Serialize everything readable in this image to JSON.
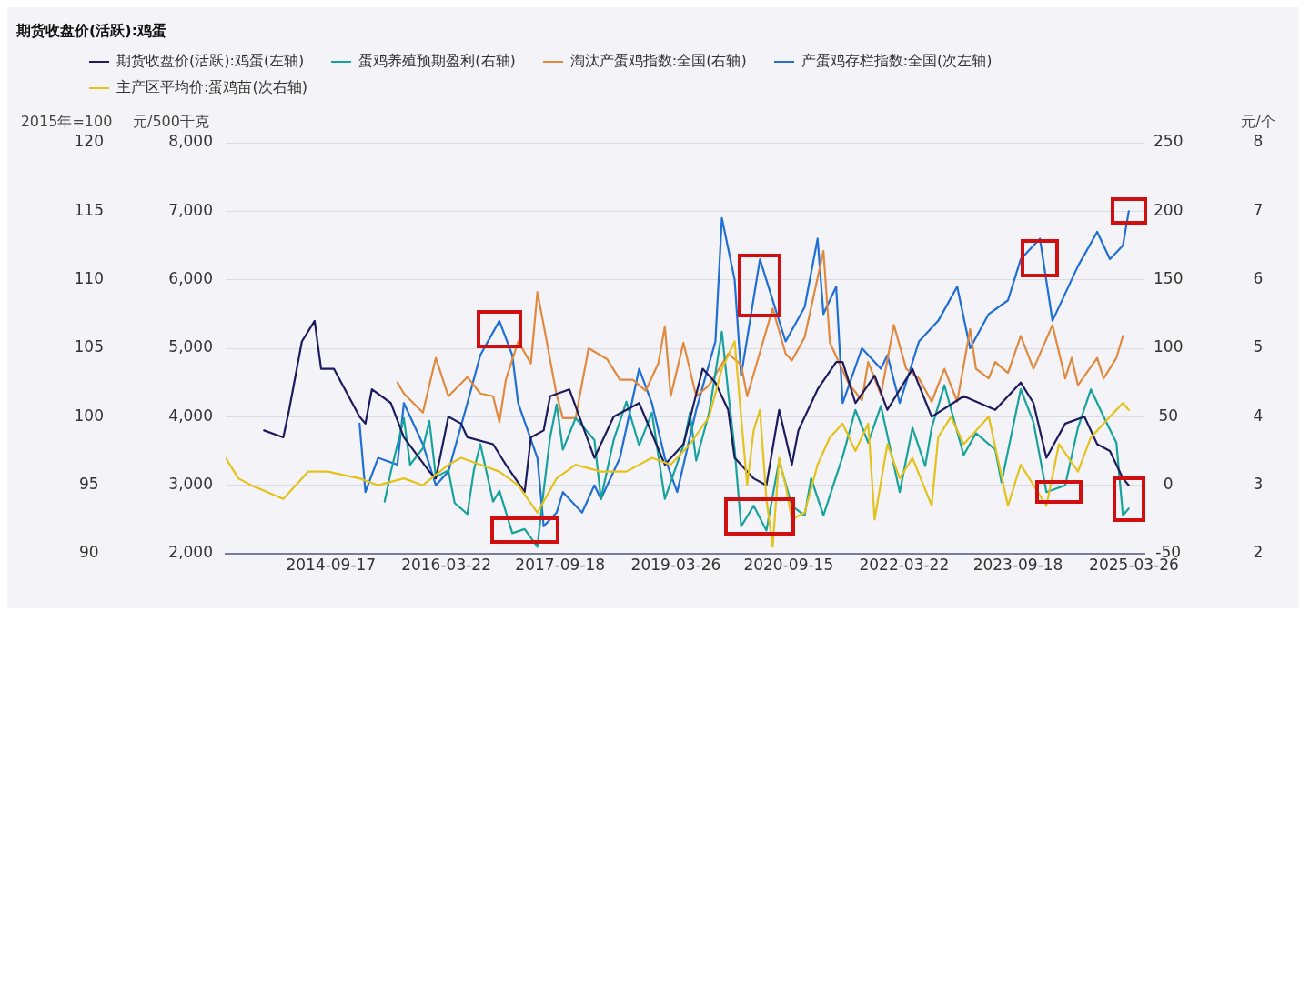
{
  "chart_data": [
    {
      "type": "line",
      "title": "期货收盘价(活跃):鸡蛋",
      "ylabel": "元/500千克",
      "y3label": "2015年=100",
      "legend": "top left",
      "grid": "y",
      "marker": "none",
      "line_style": "solid",
      "xlim": [
        "2013-05-01",
        "2025-05-15"
      ],
      "xticks": [
        "2014-09-17",
        "2016-03-22",
        "2017-09-18",
        "2019-03-26",
        "2020-09-15",
        "2022-03-22",
        "2023-09-18",
        "2025-03-26"
      ],
      "ylim": [
        2000,
        8000
      ],
      "yticks": [
        {
          "value": 2000,
          "label": "2,000"
        },
        {
          "value": 3000,
          "label": "3,000"
        },
        {
          "value": 4000,
          "label": "4,000"
        },
        {
          "value": 5000,
          "label": "5,000"
        },
        {
          "value": 6000,
          "label": "6,000"
        },
        {
          "value": 7000,
          "label": "7,000"
        },
        {
          "value": 8000,
          "label": "8,000"
        }
      ],
      "y2lim": [
        -50,
        250
      ],
      "y2ticks": [
        -50,
        0,
        50,
        100,
        150,
        200,
        250
      ],
      "y3lim": [
        90,
        120
      ],
      "y3ticks": [
        90,
        95,
        100,
        105,
        110,
        115,
        120
      ],
      "series": [
        {
          "name": "期货收盘价(活跃):鸡蛋(左轴)",
          "color": "#1c1c5e",
          "axis": "y",
          "x": [
            "2013-11",
            "2014-02",
            "2014-03",
            "2014-05",
            "2014-07",
            "2014-08",
            "2014-10",
            "2015-02",
            "2015-03",
            "2015-04",
            "2015-07",
            "2015-09",
            "2016-01",
            "2016-02",
            "2016-04",
            "2016-06",
            "2016-07",
            "2016-11",
            "2017-01",
            "2017-04",
            "2017-05",
            "2017-07",
            "2017-08",
            "2017-11",
            "2018-03",
            "2018-06",
            "2018-08",
            "2018-10",
            "2019-02",
            "2019-05",
            "2019-08",
            "2019-10",
            "2019-12",
            "2020-01",
            "2020-04",
            "2020-06",
            "2020-08",
            "2020-10",
            "2020-11",
            "2021-02",
            "2021-05",
            "2021-06",
            "2021-08",
            "2021-11",
            "2022-01",
            "2022-05",
            "2022-08",
            "2023-01",
            "2023-06",
            "2023-10",
            "2023-12",
            "2024-02",
            "2024-05",
            "2024-08",
            "2024-10",
            "2024-12",
            "2025-02",
            "2025-03"
          ],
          "values": [
            3800,
            3700,
            4100,
            5100,
            5400,
            4700,
            4700,
            4000,
            3900,
            4400,
            4200,
            3700,
            3200,
            3100,
            4000,
            3900,
            3700,
            3600,
            3300,
            2900,
            3700,
            3800,
            4300,
            4400,
            3400,
            4000,
            4100,
            4200,
            3300,
            3600,
            4700,
            4500,
            4100,
            3400,
            3100,
            3000,
            4100,
            3300,
            3800,
            4400,
            4800,
            4800,
            4200,
            4600,
            4100,
            4700,
            4000,
            4300,
            4100,
            4500,
            4200,
            3400,
            3900,
            4000,
            3600,
            3500,
            3100,
            3000
          ]
        },
        {
          "name": "蛋鸡养殖预期盈利(右轴)",
          "color": "#17a39c",
          "axis": "y2",
          "x": [
            "2015-06",
            "2015-07",
            "2015-09",
            "2015-10",
            "2015-12",
            "2016-01",
            "2016-02",
            "2016-04",
            "2016-05",
            "2016-07",
            "2016-08",
            "2016-09",
            "2016-11",
            "2016-12",
            "2017-02",
            "2017-04",
            "2017-06",
            "2017-07",
            "2017-08",
            "2017-09",
            "2017-10",
            "2017-12",
            "2018-03",
            "2018-04",
            "2018-06",
            "2018-08",
            "2018-10",
            "2018-12",
            "2019-02",
            "2019-05",
            "2019-06",
            "2019-07",
            "2019-09",
            "2019-11",
            "2019-12",
            "2020-01",
            "2020-02",
            "2020-04",
            "2020-06",
            "2020-08",
            "2020-10",
            "2020-12",
            "2021-01",
            "2021-03",
            "2021-06",
            "2021-08",
            "2021-10",
            "2021-12",
            "2022-03",
            "2022-05",
            "2022-07",
            "2022-08",
            "2022-10",
            "2023-01",
            "2023-03",
            "2023-06",
            "2023-07",
            "2023-10",
            "2023-12",
            "2024-02",
            "2024-05",
            "2024-07",
            "2024-09",
            "2024-11",
            "2025-01",
            "2025-02",
            "2025-03"
          ],
          "values": [
            -12,
            10,
            49,
            15,
            27,
            47,
            6,
            11,
            -13,
            -21,
            11,
            30,
            -12,
            -4,
            -35,
            -32,
            -45,
            -4,
            35,
            59,
            26,
            49,
            33,
            -10,
            33,
            61,
            29,
            53,
            -10,
            29,
            53,
            18,
            53,
            112,
            68,
            26,
            -30,
            -15,
            -33,
            18,
            -15,
            -22,
            5,
            -22,
            21,
            55,
            31,
            58,
            -5,
            42,
            14,
            42,
            73,
            22,
            38,
            26,
            2,
            70,
            46,
            -5,
            0,
            42,
            70,
            50,
            31,
            -22,
            -17
          ]
        },
        {
          "name": "淘汰产蛋鸡指数:全国(右轴)",
          "color": "#e08a3f",
          "axis": "y2",
          "x": [
            "2015-08",
            "2015-09",
            "2015-12",
            "2016-02",
            "2016-04",
            "2016-07",
            "2016-09",
            "2016-11",
            "2016-12",
            "2017-01",
            "2017-03",
            "2017-05",
            "2017-06",
            "2017-07",
            "2017-09",
            "2017-10",
            "2017-12",
            "2018-02",
            "2018-05",
            "2018-07",
            "2018-09",
            "2018-11",
            "2019-01",
            "2019-02",
            "2019-03",
            "2019-05",
            "2019-07",
            "2019-09",
            "2019-12",
            "2020-02",
            "2020-03",
            "2020-07",
            "2020-09",
            "2020-10",
            "2020-12",
            "2021-03",
            "2021-04",
            "2021-07",
            "2021-09",
            "2021-10",
            "2021-12",
            "2022-02",
            "2022-04",
            "2022-06",
            "2022-08",
            "2022-10",
            "2022-12",
            "2023-02",
            "2023-03",
            "2023-05",
            "2023-06",
            "2023-08",
            "2023-10",
            "2023-12",
            "2024-03",
            "2024-05",
            "2024-06",
            "2024-07",
            "2024-10",
            "2024-11",
            "2025-01",
            "2025-02"
          ],
          "values": [
            75,
            67,
            53,
            93,
            65,
            79,
            67,
            65,
            46,
            77,
            105,
            89,
            141,
            117,
            66,
            49,
            49,
            100,
            92,
            77,
            77,
            69,
            89,
            116,
            65,
            104,
            65,
            73,
            96,
            88,
            65,
            129,
            96,
            91,
            108,
            171,
            104,
            74,
            62,
            90,
            66,
            117,
            85,
            78,
            61,
            85,
            61,
            114,
            85,
            78,
            90,
            82,
            109,
            85,
            117,
            78,
            93,
            73,
            93,
            78,
            93,
            109
          ]
        },
        {
          "name": "产蛋鸡存栏指数:全国(次左轴)",
          "color": "#1f6fd4",
          "axis": "y3",
          "x": [
            "2015-02",
            "2015-03",
            "2015-05",
            "2015-08",
            "2015-09",
            "2015-12",
            "2016-02",
            "2016-04",
            "2016-07",
            "2016-09",
            "2016-12",
            "2017-02",
            "2017-03",
            "2017-06",
            "2017-07",
            "2017-09",
            "2017-10",
            "2018-01",
            "2018-03",
            "2018-04",
            "2018-07",
            "2018-10",
            "2018-12",
            "2019-02",
            "2019-04",
            "2019-07",
            "2019-10",
            "2019-11",
            "2020-01",
            "2020-02",
            "2020-05",
            "2020-08",
            "2020-09",
            "2020-12",
            "2021-02",
            "2021-03",
            "2021-05",
            "2021-06",
            "2021-09",
            "2021-12",
            "2022-01",
            "2022-03",
            "2022-06",
            "2022-09",
            "2022-12",
            "2023-02",
            "2023-05",
            "2023-08",
            "2023-10",
            "2024-01",
            "2024-03",
            "2024-07",
            "2024-10",
            "2024-12",
            "2025-02",
            "2025-03"
          ],
          "values": [
            99.5,
            94.5,
            97,
            96.5,
            101,
            98,
            95,
            96,
            101,
            104.5,
            107,
            104.5,
            101,
            97,
            92,
            93,
            94.5,
            93,
            95,
            94,
            97,
            103.5,
            101,
            97,
            94.5,
            100.5,
            105.5,
            114.5,
            110,
            103,
            111.5,
            107,
            105.5,
            108,
            113,
            107.5,
            109.5,
            101,
            105,
            103.5,
            104.5,
            101,
            105.5,
            107,
            109.5,
            105,
            107.5,
            108.5,
            111.5,
            113,
            107,
            111,
            113.5,
            111.5,
            112.5,
            115
          ]
        }
      ]
    },
    {
      "type": "line",
      "ylabel": "元/个",
      "legend": "top left",
      "marker": "none",
      "line_style": "solid",
      "tick_labels": "y",
      "xlim": [
        "2013-05-01",
        "2025-05-15"
      ],
      "ylim": [
        2,
        8
      ],
      "yticks": [
        2,
        3,
        4,
        5,
        6,
        7,
        8
      ],
      "series": [
        {
          "name": "主产区平均价:蛋鸡苗(次右轴)",
          "color": "#e3c21c",
          "x": [
            "2013-05",
            "2013-07",
            "2013-09",
            "2014-02",
            "2014-06",
            "2014-09",
            "2015-02",
            "2015-05",
            "2015-09",
            "2015-12",
            "2016-04",
            "2016-06",
            "2016-09",
            "2016-12",
            "2017-03",
            "2017-06",
            "2017-09",
            "2017-12",
            "2018-04",
            "2018-08",
            "2018-12",
            "2019-03",
            "2019-06",
            "2019-09",
            "2019-11",
            "2020-01",
            "2020-02",
            "2020-03",
            "2020-04",
            "2020-05",
            "2020-06",
            "2020-07",
            "2020-08",
            "2020-09",
            "2020-10",
            "2020-12",
            "2021-02",
            "2021-04",
            "2021-06",
            "2021-08",
            "2021-10",
            "2021-11",
            "2022-01",
            "2022-03",
            "2022-05",
            "2022-08",
            "2022-09",
            "2022-11",
            "2023-01",
            "2023-05",
            "2023-08",
            "2023-10",
            "2024-02",
            "2024-04",
            "2024-07",
            "2024-09",
            "2024-12",
            "2025-02",
            "2025-03"
          ],
          "values": [
            3.4,
            3.1,
            3.0,
            2.8,
            3.2,
            3.2,
            3.1,
            3.0,
            3.1,
            3.0,
            3.3,
            3.4,
            3.3,
            3.2,
            3.0,
            2.6,
            3.1,
            3.3,
            3.2,
            3.2,
            3.4,
            3.3,
            3.6,
            4.0,
            4.7,
            5.1,
            4.0,
            3.0,
            3.8,
            4.1,
            2.8,
            2.1,
            3.4,
            3.0,
            2.5,
            2.6,
            3.3,
            3.7,
            3.9,
            3.5,
            3.9,
            2.5,
            3.6,
            3.1,
            3.4,
            2.7,
            3.7,
            4.0,
            3.6,
            4.0,
            2.7,
            3.3,
            2.7,
            3.6,
            3.2,
            3.7,
            4.0,
            4.2,
            4.1
          ]
        }
      ]
    }
  ]
}
